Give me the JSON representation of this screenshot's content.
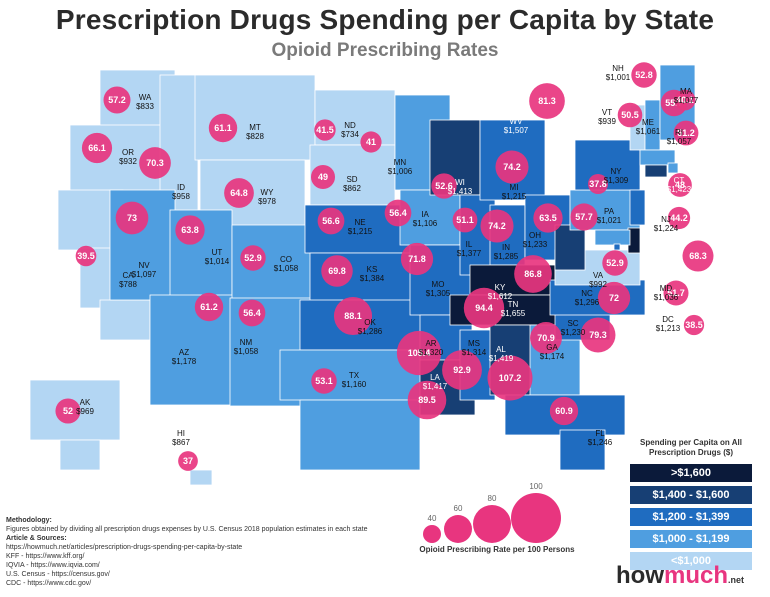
{
  "header": {
    "title": "Prescription Drugs Spending per Capita by State",
    "subtitle": "Opioid Prescribing Rates"
  },
  "colors": {
    "ocean": "#ffffff",
    "bubble": "#e8357f",
    "tiers": [
      "#0b1a3a",
      "#173f74",
      "#1f6cc0",
      "#4f9ee0",
      "#b3d6f3"
    ]
  },
  "states": [
    {
      "abbr": "WA",
      "spend": "$833",
      "rate": "57.2"
    },
    {
      "abbr": "OR",
      "spend": "$932",
      "rate": "66.1"
    },
    {
      "abbr": "CA",
      "spend": "$788",
      "rate": "39.5"
    },
    {
      "abbr": "ID",
      "spend": "$958",
      "rate": "70.3"
    },
    {
      "abbr": "NV",
      "spend": "$1,097",
      "rate": "73"
    },
    {
      "abbr": "MT",
      "spend": "$828",
      "rate": "61.1"
    },
    {
      "abbr": "WY",
      "spend": "$978",
      "rate": "64.8"
    },
    {
      "abbr": "UT",
      "spend": "$1,014",
      "rate": "63.8"
    },
    {
      "abbr": "AZ",
      "spend": "$1,178",
      "rate": "61.2"
    },
    {
      "abbr": "CO",
      "spend": "$1,058",
      "rate": "52.9"
    },
    {
      "abbr": "NM",
      "spend": "$1,058",
      "rate": "56.4"
    },
    {
      "abbr": "ND",
      "spend": "$734",
      "rate": "41.5"
    },
    {
      "abbr": "SD",
      "spend": "$862",
      "rate": "49"
    },
    {
      "abbr": "NE",
      "spend": "$1,215",
      "rate": "56.6"
    },
    {
      "abbr": "KS",
      "spend": "$1,384",
      "rate": "69.8"
    },
    {
      "abbr": "OK",
      "spend": "$1,286",
      "rate": "88.1"
    },
    {
      "abbr": "TX",
      "spend": "$1,160",
      "rate": "53.1"
    },
    {
      "abbr": "MN",
      "spend": "$1,006",
      "rate": "41"
    },
    {
      "abbr": "IA",
      "spend": "$1,106",
      "rate": "56.4"
    },
    {
      "abbr": "MO",
      "spend": "$1,305",
      "rate": "71.8"
    },
    {
      "abbr": "AR",
      "spend": "$1,320",
      "rate": "105.4"
    },
    {
      "abbr": "LA",
      "spend": "$1,417",
      "rate": "89.5"
    },
    {
      "abbr": "WI",
      "spend": "$1,413",
      "rate": "52.6"
    },
    {
      "abbr": "IL",
      "spend": "$1,377",
      "rate": "51.1"
    },
    {
      "abbr": "MS",
      "spend": "$1,314",
      "rate": "92.9"
    },
    {
      "abbr": "MI",
      "spend": "$1,215",
      "rate": "74.2"
    },
    {
      "abbr": "IN",
      "spend": "$1,285",
      "rate": "74.2"
    },
    {
      "abbr": "KY",
      "spend": "$1,612",
      "rate": "86.8"
    },
    {
      "abbr": "TN",
      "spend": "$1,655",
      "rate": "94.4"
    },
    {
      "abbr": "AL",
      "spend": "$1,419",
      "rate": "107.2"
    },
    {
      "abbr": "OH",
      "spend": "$1,233",
      "rate": "63.5"
    },
    {
      "abbr": "GA",
      "spend": "$1,174",
      "rate": "70.9"
    },
    {
      "abbr": "FL",
      "spend": "$1,246",
      "rate": "60.9"
    },
    {
      "abbr": "SC",
      "spend": "$1,230",
      "rate": "79.3"
    },
    {
      "abbr": "NC",
      "spend": "$1,296",
      "rate": "72"
    },
    {
      "abbr": "VA",
      "spend": "$992",
      "rate": "52.9"
    },
    {
      "abbr": "WV",
      "spend": "$1,507",
      "rate": "81.3"
    },
    {
      "abbr": "PA",
      "spend": "$1,021",
      "rate": "57.7"
    },
    {
      "abbr": "NY",
      "spend": "$1,309",
      "rate": "37.8"
    },
    {
      "abbr": "VT",
      "spend": "$939",
      "rate": "50.5"
    },
    {
      "abbr": "NH",
      "spend": "$1,001",
      "rate": "52.8"
    },
    {
      "abbr": "ME",
      "spend": "$1,061",
      "rate": "55.7"
    },
    {
      "abbr": "MA",
      "spend": "$1,077",
      "rate": "40.1"
    },
    {
      "abbr": "RI",
      "spend": "$1,057",
      "rate": "51.2"
    },
    {
      "abbr": "CT",
      "spend": "$1,423",
      "rate": "48"
    },
    {
      "abbr": "NJ",
      "spend": "$1,224",
      "rate": "44.2"
    },
    {
      "abbr": "DE",
      "spend": "$1,693",
      "rate": "68.3"
    },
    {
      "abbr": "MD",
      "spend": "$1,036",
      "rate": "51.7"
    },
    {
      "abbr": "DC",
      "spend": "$1,213",
      "rate": "38.5"
    },
    {
      "abbr": "AK",
      "spend": "$969",
      "rate": "52"
    },
    {
      "abbr": "HI",
      "spend": "$867",
      "rate": "37"
    }
  ],
  "legend": {
    "title": "Spending per Capita on All Prescription Drugs ($)",
    "tiers": [
      ">$1,600",
      "$1,400 - $1,600",
      "$1,200 - $1,399",
      "$1,000 - $1,199",
      "<$1,000"
    ]
  },
  "size_legend": {
    "values": [
      "40",
      "60",
      "80",
      "100"
    ],
    "caption": "Opioid Prescribing Rate per 100 Persons"
  },
  "methodology": {
    "heading": "Methodology:",
    "text": "Figures obtained by dividing all prescription drugs expenses by U.S. Census 2018 population estimates in each state",
    "sources_heading": "Article & Sources:",
    "sources": [
      "https://howmuch.net/articles/prescription-drugs-spending-per-capita-by-state",
      "KFF - https://www.kff.org/",
      "IQVIA - https://www.iqvia.com/",
      "U.S. Census - https://census.gov/",
      "CDC - https://www.cdc.gov/"
    ]
  },
  "brand": {
    "how": "how",
    "much": "much",
    "net": ".net"
  }
}
